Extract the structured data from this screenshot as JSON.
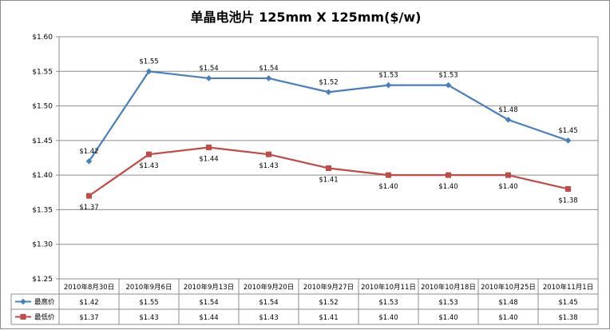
{
  "chart_data": {
    "type": "line",
    "title": "单晶电池片 125mm X 125mm($/w)",
    "categories": [
      "2010年8月30日",
      "2010年9月6日",
      "2010年9月13日",
      "2010年9月20日",
      "2010年9月27日",
      "2010年10月11日",
      "2010年10月18日",
      "2010年10月25日",
      "2010年11月1日"
    ],
    "series": [
      {
        "name": "最高价",
        "color": "#4a7ebb",
        "marker": "diamond",
        "values": [
          1.42,
          1.55,
          1.54,
          1.54,
          1.52,
          1.53,
          1.53,
          1.48,
          1.45
        ],
        "labels": [
          "$1.42",
          "$1.55",
          "$1.54",
          "$1.54",
          "$1.52",
          "$1.53",
          "$1.53",
          "$1.48",
          "$1.45"
        ]
      },
      {
        "name": "最低价",
        "color": "#be4b48",
        "marker": "square",
        "values": [
          1.37,
          1.43,
          1.44,
          1.43,
          1.41,
          1.4,
          1.4,
          1.4,
          1.38
        ],
        "labels": [
          "$1.37",
          "$1.43",
          "$1.44",
          "$1.43",
          "$1.41",
          "$1.40",
          "$1.40",
          "$1.40",
          "$1.38"
        ]
      }
    ],
    "ylim": [
      1.25,
      1.6
    ],
    "yticks": [
      1.25,
      1.3,
      1.35,
      1.4,
      1.45,
      1.5,
      1.55,
      1.6
    ],
    "ytick_labels": [
      "$1.25",
      "$1.30",
      "$1.35",
      "$1.40",
      "$1.45",
      "$1.50",
      "$1.55",
      "$1.60"
    ],
    "grid": true,
    "legend": "data-table",
    "data_table": true
  }
}
